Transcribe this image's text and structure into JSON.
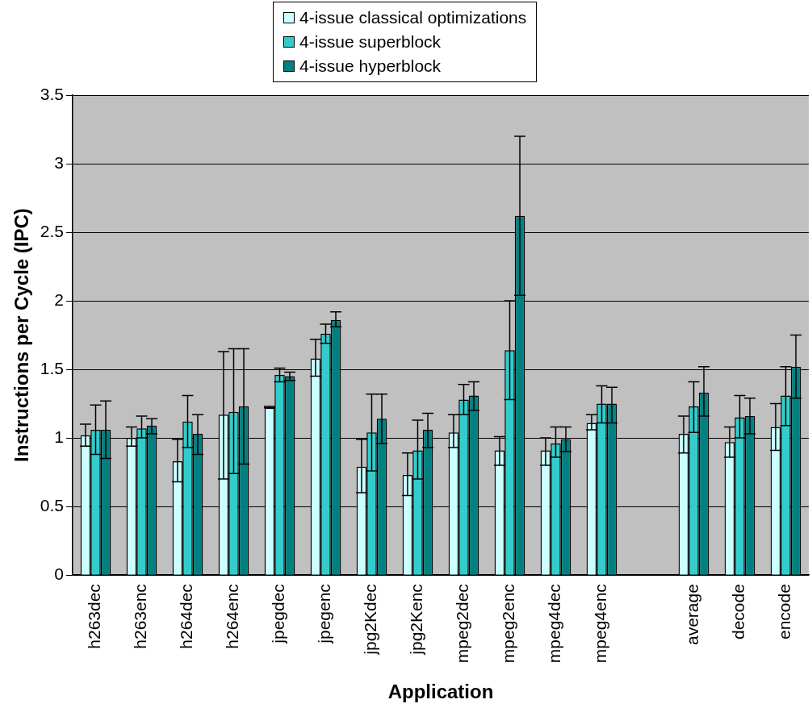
{
  "chart_data": {
    "type": "bar",
    "xlabel": "Application",
    "ylabel": "Instructions per Cycle (IPC)",
    "categories": [
      "h263dec",
      "h263enc",
      "h264dec",
      "h264enc",
      "jpegdec",
      "jpegenc",
      "jpg2Kdec",
      "jpg2Kenc",
      "mpeg2dec",
      "mpeg2enc",
      "mpeg4dec",
      "mpeg4enc",
      null,
      "average",
      "decode",
      "encode"
    ],
    "series": [
      {
        "name": "4-issue classical optimizations",
        "color": "#ccffff",
        "values": [
          1.02,
          1.0,
          0.83,
          1.17,
          1.22,
          1.58,
          0.79,
          0.73,
          1.04,
          0.91,
          0.91,
          1.11,
          null,
          1.03,
          0.97,
          1.08
        ],
        "errors": [
          [
            0.94,
            1.1
          ],
          [
            0.94,
            1.08
          ],
          [
            0.68,
            0.99
          ],
          [
            0.7,
            1.63
          ],
          [
            1.22,
            1.23
          ],
          [
            1.45,
            1.72
          ],
          [
            0.6,
            0.99
          ],
          [
            0.58,
            0.89
          ],
          [
            0.93,
            1.17
          ],
          [
            0.8,
            1.01
          ],
          [
            0.8,
            1.0
          ],
          [
            1.06,
            1.17
          ],
          null,
          [
            0.89,
            1.16
          ],
          [
            0.86,
            1.08
          ],
          [
            0.91,
            1.25
          ]
        ]
      },
      {
        "name": "4-issue superblock",
        "color": "#33cccc",
        "values": [
          1.06,
          1.07,
          1.12,
          1.19,
          1.46,
          1.76,
          1.04,
          0.91,
          1.28,
          1.64,
          0.96,
          1.25,
          null,
          1.23,
          1.15,
          1.31
        ],
        "errors": [
          [
            0.88,
            1.24
          ],
          [
            1.0,
            1.16
          ],
          [
            0.93,
            1.31
          ],
          [
            0.74,
            1.65
          ],
          [
            1.41,
            1.51
          ],
          [
            1.69,
            1.83
          ],
          [
            0.76,
            1.32
          ],
          [
            0.7,
            1.13
          ],
          [
            1.17,
            1.39
          ],
          [
            1.28,
            2.0
          ],
          [
            0.86,
            1.08
          ],
          [
            1.11,
            1.38
          ],
          null,
          [
            1.04,
            1.41
          ],
          [
            1.0,
            1.31
          ],
          [
            1.09,
            1.52
          ]
        ]
      },
      {
        "name": "4-issue hyperblock",
        "color": "#008080",
        "values": [
          1.06,
          1.09,
          1.03,
          1.23,
          1.45,
          1.86,
          1.14,
          1.06,
          1.31,
          2.62,
          0.99,
          1.25,
          null,
          1.33,
          1.16,
          1.52
        ],
        "errors": [
          [
            0.85,
            1.27
          ],
          [
            1.03,
            1.14
          ],
          [
            0.88,
            1.17
          ],
          [
            0.81,
            1.65
          ],
          [
            1.42,
            1.48
          ],
          [
            1.81,
            1.92
          ],
          [
            0.96,
            1.32
          ],
          [
            0.93,
            1.18
          ],
          [
            1.2,
            1.41
          ],
          [
            2.04,
            3.2
          ],
          [
            0.9,
            1.08
          ],
          [
            1.11,
            1.37
          ],
          null,
          [
            1.16,
            1.52
          ],
          [
            1.03,
            1.29
          ],
          [
            1.29,
            1.75
          ]
        ]
      }
    ],
    "ylim": [
      0,
      3.5
    ],
    "yticks": [
      0,
      0.5,
      1,
      1.5,
      2,
      2.5,
      3,
      3.5
    ],
    "grid": "y",
    "legend": "top"
  }
}
